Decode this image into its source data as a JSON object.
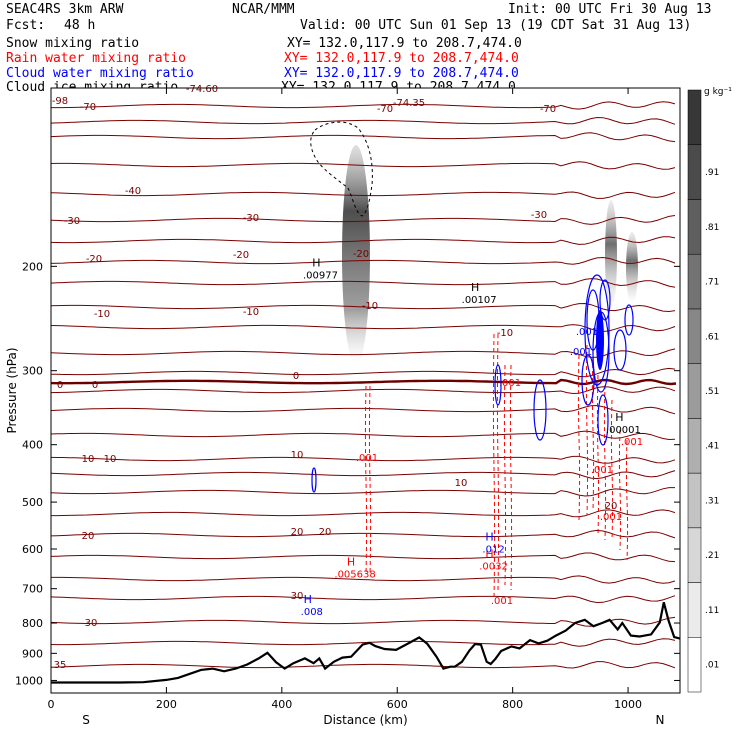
{
  "header": {
    "model": "SEAC4RS  3km ARW",
    "org": "NCAR/MMM",
    "init": "Init: 00 UTC Fri 30 Aug 13",
    "fcst_label": "Fcst:",
    "fcst_value": "48 h",
    "valid": "Valid: 00 UTC Sun 01 Sep 13 (19 CDT Sat 31 Aug 13)",
    "fields": [
      {
        "name": "Snow mixing ratio",
        "xy": "XY= 132.0,117.9 to 208.7,474.0",
        "color": "#000000"
      },
      {
        "name": "Rain water mixing ratio",
        "xy": "XY= 132.0,117.9 to 208.7,474.0",
        "color": "#ff0000"
      },
      {
        "name": "Cloud water mixing ratio",
        "xy": "XY= 132.0,117.9 to 208.7,474.0",
        "color": "#0000ff"
      },
      {
        "name": "Cloud ice mixing ratio",
        "xy": "XY= 132.0,117.9 to 208.7,474.0",
        "color": "#000000"
      }
    ]
  },
  "chart_data": {
    "type": "cross-section",
    "xlabel": "Distance (km)",
    "ylabel": "Pressure (hPa)",
    "xlim": [
      0,
      1090
    ],
    "ylim": [
      1050,
      100
    ],
    "y_scale": "log",
    "x_ticks": [
      0,
      200,
      400,
      600,
      800,
      1000
    ],
    "y_ticks": [
      200,
      300,
      400,
      500,
      600,
      700,
      800,
      900,
      1000
    ],
    "x_end_labels": {
      "left": "S",
      "right": "N"
    },
    "colorbar": {
      "unit": "g kg⁻¹",
      "levels": [
        ".01",
        ".11",
        ".21",
        ".31",
        ".41",
        ".51",
        ".61",
        ".71",
        ".81",
        ".91"
      ]
    },
    "temperature_contours": {
      "color": "#7a0000",
      "freezing_level_label": "0",
      "labels": [
        "-70",
        "-70",
        "-70",
        "-74.35",
        "-40",
        "-30",
        "-30",
        "-30",
        "-20",
        "-20",
        "-20",
        "-10",
        "-10",
        "-10",
        "-10",
        "0",
        "0",
        "0",
        "10",
        "10",
        "10",
        "10",
        "20",
        "20",
        "20",
        "20",
        "30",
        "30",
        "35",
        "-98",
        "-74.60"
      ]
    },
    "terrain_pressure": [
      [
        0,
        1008
      ],
      [
        60,
        1008
      ],
      [
        120,
        1008
      ],
      [
        160,
        1007
      ],
      [
        200,
        998
      ],
      [
        220,
        990
      ],
      [
        240,
        975
      ],
      [
        260,
        960
      ],
      [
        280,
        955
      ],
      [
        300,
        965
      ],
      [
        320,
        955
      ],
      [
        340,
        940
      ],
      [
        360,
        918
      ],
      [
        375,
        898
      ],
      [
        390,
        932
      ],
      [
        405,
        955
      ],
      [
        420,
        935
      ],
      [
        440,
        918
      ],
      [
        455,
        935
      ],
      [
        465,
        918
      ],
      [
        475,
        955
      ],
      [
        490,
        930
      ],
      [
        505,
        915
      ],
      [
        520,
        912
      ],
      [
        540,
        870
      ],
      [
        552,
        864
      ],
      [
        562,
        875
      ],
      [
        578,
        885
      ],
      [
        598,
        888
      ],
      [
        620,
        865
      ],
      [
        638,
        846
      ],
      [
        652,
        867
      ],
      [
        668,
        912
      ],
      [
        680,
        955
      ],
      [
        692,
        948
      ],
      [
        700,
        948
      ],
      [
        712,
        930
      ],
      [
        725,
        890
      ],
      [
        735,
        868
      ],
      [
        745,
        870
      ],
      [
        755,
        930
      ],
      [
        762,
        938
      ],
      [
        770,
        920
      ],
      [
        780,
        892
      ],
      [
        798,
        876
      ],
      [
        812,
        883
      ],
      [
        830,
        855
      ],
      [
        845,
        866
      ],
      [
        860,
        857
      ],
      [
        875,
        840
      ],
      [
        892,
        824
      ],
      [
        908,
        800
      ],
      [
        925,
        790
      ],
      [
        940,
        810
      ],
      [
        955,
        800
      ],
      [
        968,
        790
      ],
      [
        982,
        820
      ],
      [
        990,
        800
      ],
      [
        1005,
        840
      ],
      [
        1020,
        843
      ],
      [
        1040,
        836
      ],
      [
        1055,
        798
      ],
      [
        1062,
        738
      ],
      [
        1070,
        792
      ],
      [
        1080,
        845
      ],
      [
        1090,
        850
      ]
    ],
    "maxima": [
      {
        "label": "H",
        "value": ".00977",
        "x": 460,
        "p": 200,
        "color": "#000000"
      },
      {
        "label": "H",
        "value": ".00107",
        "x": 735,
        "p": 220,
        "color": "#000000"
      },
      {
        "label": "H",
        "value": ".00001",
        "x": 985,
        "p": 365,
        "color": "#000000"
      },
      {
        "label": "H",
        "value": ".005638",
        "x": 520,
        "p": 640,
        "color": "#ff0000"
      },
      {
        "label": "H",
        "value": ".0032",
        "x": 760,
        "p": 620,
        "color": "#ff0000"
      },
      {
        "label": "H",
        "value": ".012",
        "x": 760,
        "p": 580,
        "color": "#0000ff"
      },
      {
        "label": "H",
        "value": ".008",
        "x": 445,
        "p": 740,
        "color": "#0000ff"
      }
    ],
    "rain_labels": [
      ".001",
      ".001",
      ".001",
      ".001",
      ".001",
      ".001"
    ],
    "cloud_labels": [
      ".001",
      ".001"
    ]
  }
}
